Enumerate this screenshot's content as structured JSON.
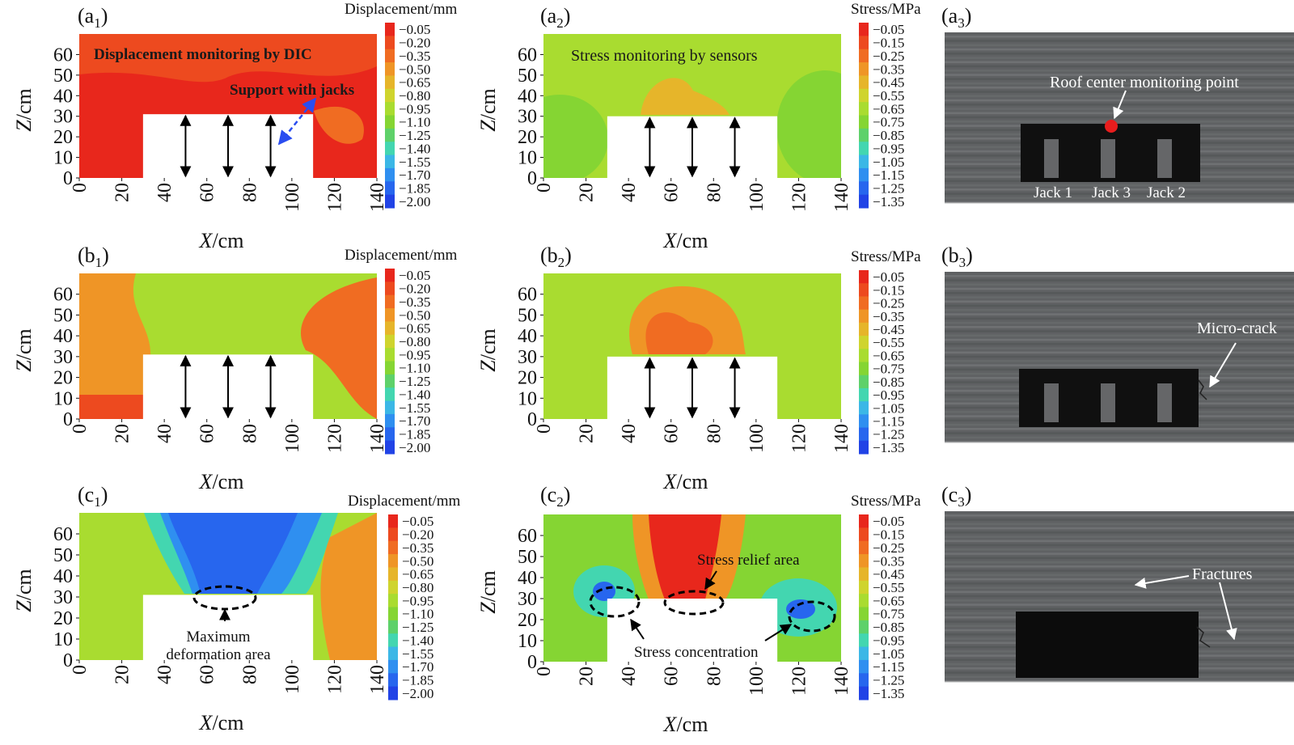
{
  "figure": {
    "panels": [
      {
        "id": "a1",
        "letter": "a",
        "sub": "1"
      },
      {
        "id": "a2",
        "letter": "a",
        "sub": "2"
      },
      {
        "id": "a3",
        "letter": "a",
        "sub": "3"
      },
      {
        "id": "b1",
        "letter": "b",
        "sub": "1"
      },
      {
        "id": "b2",
        "letter": "b",
        "sub": "2"
      },
      {
        "id": "b3",
        "letter": "b",
        "sub": "3"
      },
      {
        "id": "c1",
        "letter": "c",
        "sub": "1"
      },
      {
        "id": "c2",
        "letter": "c",
        "sub": "2"
      },
      {
        "id": "c3",
        "letter": "c",
        "sub": "3"
      }
    ],
    "colorbar_disp": {
      "title": "Displacement/mm",
      "ticks": [
        "−0.05",
        "−0.20",
        "−0.35",
        "−0.50",
        "−0.65",
        "−0.80",
        "−0.95",
        "−1.10",
        "−1.25",
        "−1.40",
        "−1.55",
        "−1.70",
        "−1.85",
        "−2.00"
      ]
    },
    "colorbar_stress": {
      "title": "Stress/MPa",
      "ticks": [
        "−0.05",
        "−0.15",
        "−0.25",
        "−0.35",
        "−0.45",
        "−0.55",
        "−0.65",
        "−0.75",
        "−0.85",
        "−0.95",
        "−1.05",
        "−1.15",
        "−1.25",
        "−1.35"
      ]
    },
    "colormap": [
      "#e8271c",
      "#ed4a1f",
      "#f06c22",
      "#ef9526",
      "#e6b52a",
      "#cfd42e",
      "#a9dc30",
      "#85d533",
      "#5ed16a",
      "#43d6b0",
      "#3bb7e6",
      "#2f8ff0",
      "#2766ee",
      "#2143e6"
    ],
    "annotations": {
      "a1_dic": "Displacement monitoring by DIC",
      "a1_jacks": "Support with jacks",
      "a2_sensors": "Stress monitoring by sensors",
      "a3_roof": "Roof center monitoring point",
      "a3_jack1": "Jack 1",
      "a3_jack3": "Jack 3",
      "a3_jack2": "Jack 2",
      "b3_crack": "Micro-crack",
      "c1_max_line1": "Maximum",
      "c1_max_line2": "deformation area",
      "c2_relief": "Stress relief area",
      "c2_conc": "Stress concentration",
      "c3_fractures": "Fractures"
    }
  },
  "chart_data": [
    {
      "panel": "a1",
      "type": "heatmap",
      "title": "",
      "xlabel": "X/cm",
      "ylabel": "Z/cm",
      "xlim": [
        0,
        140
      ],
      "ylim": [
        0,
        70
      ],
      "xticks": [
        0,
        20,
        40,
        60,
        80,
        100,
        120,
        140
      ],
      "yticks": [
        0,
        10,
        20,
        30,
        40,
        50,
        60
      ],
      "colorbar": "Displacement/mm",
      "zone_levels": {
        "background": 0,
        "top_band": 1,
        "right_patch": 2
      },
      "opening": {
        "x": [
          30,
          110
        ],
        "z": [
          0,
          31
        ]
      },
      "jack_x": [
        50,
        70,
        90
      ]
    },
    {
      "panel": "a2",
      "type": "heatmap",
      "title": "",
      "xlabel": "X/cm",
      "ylabel": "Z/cm",
      "xlim": [
        0,
        140
      ],
      "ylim": [
        0,
        70
      ],
      "xticks": [
        0,
        20,
        40,
        60,
        80,
        100,
        120,
        140
      ],
      "yticks": [
        0,
        10,
        20,
        30,
        40,
        50,
        60
      ],
      "colorbar": "Stress/MPa",
      "zone_levels": {
        "background": 6,
        "side_lobes": 7,
        "roof_bulge": 4
      },
      "opening": {
        "x": [
          30,
          110
        ],
        "z": [
          0,
          30
        ]
      },
      "jack_x": [
        50,
        70,
        90
      ]
    },
    {
      "panel": "b1",
      "type": "heatmap",
      "title": "",
      "xlabel": "X/cm",
      "ylabel": "Z/cm",
      "xlim": [
        0,
        140
      ],
      "ylim": [
        0,
        70
      ],
      "xticks": [
        0,
        20,
        40,
        60,
        80,
        100,
        120,
        140
      ],
      "yticks": [
        0,
        10,
        20,
        30,
        40,
        50,
        60
      ],
      "colorbar": "Displacement/mm",
      "zone_levels": {
        "background": 6,
        "left_band": 3,
        "right_band": 2,
        "bottom_left": 1
      },
      "opening": {
        "x": [
          30,
          110
        ],
        "z": [
          0,
          31
        ]
      },
      "jack_x": [
        50,
        70,
        90
      ]
    },
    {
      "panel": "b2",
      "type": "heatmap",
      "title": "",
      "xlabel": "X/cm",
      "ylabel": "Z/cm",
      "xlim": [
        0,
        140
      ],
      "ylim": [
        0,
        70
      ],
      "xticks": [
        0,
        20,
        40,
        60,
        80,
        100,
        120,
        140
      ],
      "yticks": [
        0,
        10,
        20,
        30,
        40,
        50,
        60
      ],
      "colorbar": "Stress/MPa",
      "zone_levels": {
        "background": 6,
        "roof_bulge_outer": 3,
        "roof_bulge_inner": 2
      },
      "opening": {
        "x": [
          30,
          110
        ],
        "z": [
          0,
          30
        ]
      },
      "jack_x": [
        50,
        70,
        90
      ]
    },
    {
      "panel": "c1",
      "type": "heatmap",
      "title": "",
      "xlabel": "X/cm",
      "ylabel": "Z/cm",
      "xlim": [
        0,
        140
      ],
      "ylim": [
        0,
        70
      ],
      "xticks": [
        0,
        20,
        40,
        60,
        80,
        100,
        120,
        140
      ],
      "yticks": [
        0,
        10,
        20,
        30,
        40,
        50,
        60
      ],
      "colorbar": "Displacement/mm",
      "zone_levels": {
        "background": 6,
        "center_outer": 9,
        "center_mid": 11,
        "center_core": 12,
        "right_band": 3
      },
      "opening": {
        "x": [
          30,
          110
        ],
        "z": [
          0,
          31
        ]
      },
      "jack_x": []
    },
    {
      "panel": "c2",
      "type": "heatmap",
      "title": "",
      "xlabel": "X/cm",
      "ylabel": "Z/cm",
      "xlim": [
        0,
        140
      ],
      "ylim": [
        0,
        70
      ],
      "xticks": [
        0,
        20,
        40,
        60,
        80,
        100,
        120,
        140
      ],
      "yticks": [
        0,
        10,
        20,
        30,
        40,
        50,
        60
      ],
      "colorbar": "Stress/MPa",
      "zone_levels": {
        "background": 7,
        "relief_outer": 3,
        "relief_core": 0,
        "concentration_outer": 9,
        "concentration_core": 12
      },
      "opening": {
        "x": [
          30,
          110
        ],
        "z": [
          0,
          30
        ]
      },
      "jack_x": []
    }
  ]
}
